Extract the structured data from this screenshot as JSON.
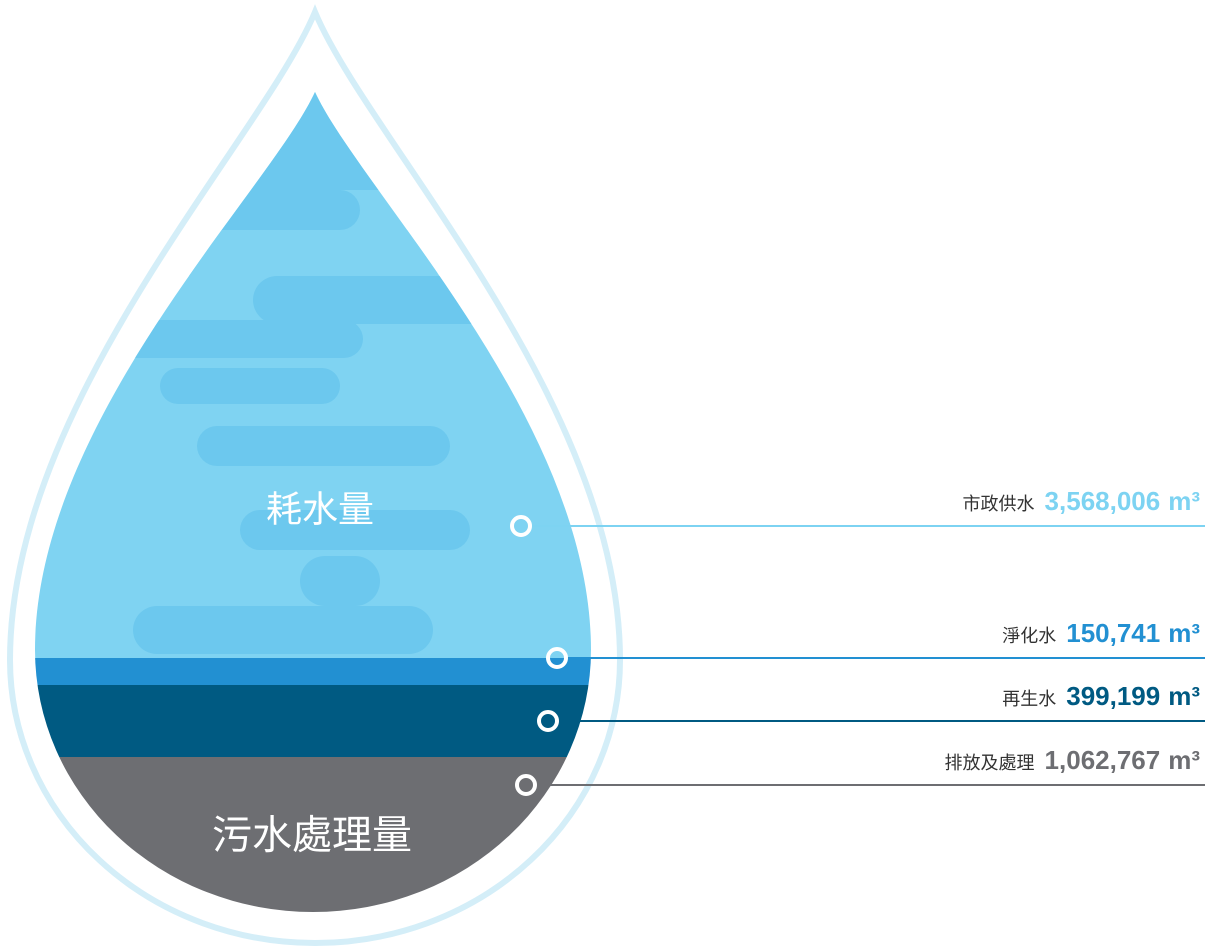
{
  "drop": {
    "top_label": "耗水量",
    "bottom_label": "污水處理量"
  },
  "items": [
    {
      "label": "市政供水",
      "value": "3,568,006",
      "unit": "m³",
      "color": "#7dd3f2"
    },
    {
      "label": "淨化水",
      "value": "150,741",
      "unit": "m³",
      "color": "#2290d2"
    },
    {
      "label": "再生水",
      "value": "399,199",
      "unit": "m³",
      "color": "#005a82"
    },
    {
      "label": "排放及處理",
      "value": "1,062,767",
      "unit": "m³",
      "color": "#6d6e72"
    }
  ]
}
